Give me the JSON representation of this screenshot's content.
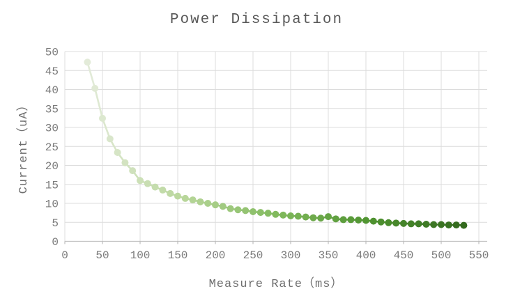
{
  "chart_data": {
    "type": "line",
    "title": "Power Dissipation",
    "xlabel": "Measure Rate（ms）",
    "ylabel": "Current（uA）",
    "x": [
      30,
      40,
      50,
      60,
      70,
      80,
      90,
      100,
      110,
      120,
      130,
      140,
      150,
      160,
      170,
      180,
      190,
      200,
      210,
      220,
      230,
      240,
      250,
      260,
      270,
      280,
      290,
      300,
      310,
      320,
      330,
      340,
      350,
      360,
      370,
      380,
      390,
      400,
      410,
      420,
      430,
      440,
      450,
      460,
      470,
      480,
      490,
      500,
      510,
      520,
      530
    ],
    "y": [
      47.2,
      40.3,
      32.4,
      27.0,
      23.4,
      20.7,
      18.6,
      16.0,
      15.2,
      14.3,
      13.5,
      12.6,
      11.9,
      11.3,
      10.9,
      10.4,
      10.0,
      9.6,
      9.2,
      8.6,
      8.3,
      8.1,
      7.8,
      7.6,
      7.4,
      7.1,
      6.9,
      6.7,
      6.6,
      6.4,
      6.2,
      6.1,
      6.5,
      5.9,
      5.7,
      5.7,
      5.6,
      5.5,
      5.3,
      5.1,
      4.9,
      4.8,
      4.7,
      4.6,
      4.6,
      4.5,
      4.4,
      4.4,
      4.3,
      4.3,
      4.2
    ],
    "xticks": [
      0,
      50,
      100,
      150,
      200,
      250,
      300,
      350,
      400,
      450,
      500,
      550
    ],
    "yticks": [
      0,
      5,
      10,
      15,
      20,
      25,
      30,
      35,
      40,
      45,
      50
    ],
    "xlim": [
      0,
      560
    ],
    "ylim": [
      0,
      50
    ],
    "grid": true,
    "legend": false,
    "marker_gradient": [
      "#e3ebd9",
      "#bad79d",
      "#82ba5e",
      "#4f9330",
      "#33691e"
    ],
    "grid_color": "#dcdcdc",
    "axis_color": "#bdbdbd",
    "title_color": "#595959",
    "tick_color": "#7a7a7a",
    "axis_label_color": "#6e6e6e"
  }
}
